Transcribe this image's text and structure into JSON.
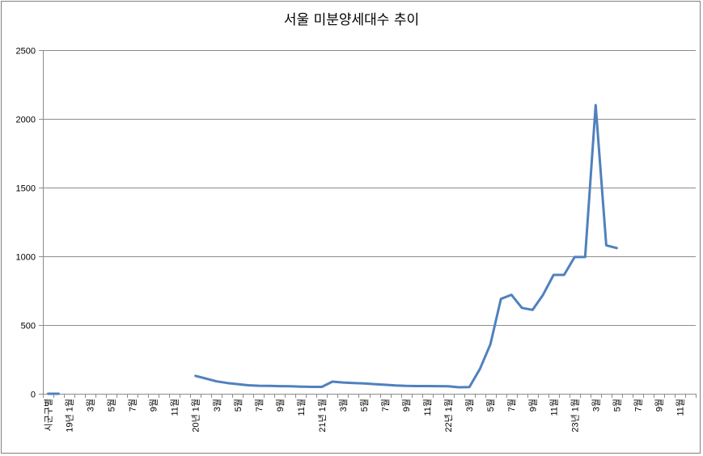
{
  "chart_data": {
    "type": "line",
    "title": "서울 미분양세대수 추이",
    "xlabel": "",
    "ylabel": "",
    "ylim": [
      0,
      2500
    ],
    "y_ticks": [
      0,
      500,
      1000,
      1500,
      2000,
      2500
    ],
    "grid": true,
    "legend": "none",
    "line_color": "#4f81bd",
    "categories": [
      "시군구별",
      "",
      "19년 1월",
      "",
      "3월",
      "",
      "5월",
      "",
      "7월",
      "",
      "9월",
      "",
      "11월",
      "",
      "20년 1월",
      "",
      "3월",
      "",
      "5월",
      "",
      "7월",
      "",
      "9월",
      "",
      "11월",
      "",
      "21년 1월",
      "",
      "3월",
      "",
      "5월",
      "",
      "7월",
      "",
      "9월",
      "",
      "11월",
      "",
      "22년 1월",
      "",
      "3월",
      "",
      "5월",
      "",
      "7월",
      "",
      "9월",
      "",
      "11월",
      "",
      "23년 1월",
      "",
      "3월",
      "",
      "5월",
      "",
      "7월",
      "",
      "9월",
      "",
      "11월",
      ""
    ],
    "series": [
      {
        "values": [
          0,
          0,
          null,
          null,
          null,
          null,
          null,
          null,
          null,
          null,
          null,
          null,
          null,
          null,
          130,
          110,
          90,
          78,
          70,
          62,
          58,
          57,
          55,
          54,
          52,
          50,
          50,
          88,
          82,
          78,
          75,
          70,
          65,
          60,
          57,
          56,
          56,
          55,
          54,
          47,
          48,
          180,
          360,
          690,
          720,
          625,
          610,
          720,
          865,
          865,
          995,
          995,
          2100,
          1080,
          1060,
          null,
          null,
          null,
          null,
          null,
          null,
          null
        ]
      }
    ]
  }
}
